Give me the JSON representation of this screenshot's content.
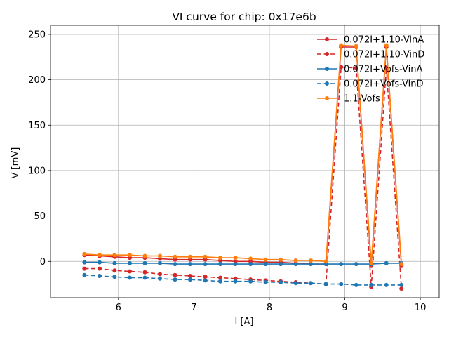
{
  "chart_data": {
    "type": "line",
    "title": "VI curve for chip: 0x17e6b",
    "xlabel": "I [A]",
    "ylabel": "V [mV]",
    "xlim": [
      5.1,
      10.25
    ],
    "ylim": [
      -40,
      260
    ],
    "xticks": [
      6,
      7,
      8,
      9,
      10
    ],
    "yticks": [
      0,
      50,
      100,
      150,
      200,
      250
    ],
    "grid": true,
    "legend_position": "top-right",
    "x": [
      5.55,
      5.75,
      5.95,
      6.15,
      6.35,
      6.55,
      6.75,
      6.95,
      7.15,
      7.35,
      7.55,
      7.75,
      7.95,
      8.15,
      8.35,
      8.55,
      8.75,
      8.95,
      9.15,
      9.35,
      9.55,
      9.75
    ],
    "series": [
      {
        "name": "0.072I+1.10-VinA",
        "color": "#d62728",
        "dashed": false,
        "values": [
          7,
          6,
          5,
          4,
          4,
          3,
          2,
          2,
          2,
          1,
          0,
          0,
          -1,
          -1,
          -2,
          -3,
          -3,
          236,
          236,
          -5,
          236,
          -5
        ]
      },
      {
        "name": "0.072I+1.10-VinD",
        "color": "#d62728",
        "dashed": true,
        "values": [
          -8,
          -8,
          -10,
          -11,
          -12,
          -14,
          -15,
          -16,
          -17,
          -18,
          -19,
          -20,
          -21,
          -22,
          -23,
          -24,
          -25,
          214,
          213,
          -28,
          213,
          -30
        ]
      },
      {
        "name": "0.072I+Vofs-VinA",
        "color": "#1f77b4",
        "dashed": false,
        "values": [
          -1,
          -1,
          -2,
          -2,
          -2,
          -2,
          -3,
          -3,
          -3,
          -3,
          -3,
          -3,
          -3,
          -3,
          -3,
          -3,
          -3,
          -3,
          -3,
          -3,
          -2,
          -2
        ]
      },
      {
        "name": "0.072I+Vofs-VinD",
        "color": "#1f77b4",
        "dashed": true,
        "values": [
          -15,
          -16,
          -17,
          -18,
          -18,
          -19,
          -20,
          -20,
          -21,
          -22,
          -22,
          -22,
          -23,
          -23,
          -24,
          -24,
          -25,
          -25,
          -26,
          -26,
          -26,
          -26
        ]
      },
      {
        "name": "1.1-Vofs",
        "color": "#ff7f0e",
        "dashed": false,
        "values": [
          8,
          7,
          7,
          7,
          6,
          6,
          5,
          5,
          5,
          4,
          4,
          3,
          2,
          2,
          1,
          1,
          0,
          238,
          237,
          -2,
          238,
          -3
        ]
      }
    ]
  }
}
